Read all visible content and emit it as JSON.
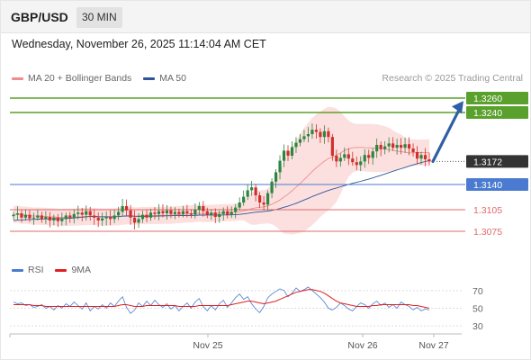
{
  "header": {
    "symbol": "GBP/USD",
    "timeframe": "30 MIN",
    "datetime": "Wednesday, November 26, 2025 11:14:04 AM CET",
    "source": "Research © 2025 Trading Central"
  },
  "legend_main": [
    {
      "label": "MA 20 + Bollinger Bands",
      "color": "#f08c8c"
    },
    {
      "label": "MA 50",
      "color": "#2f5597"
    }
  ],
  "legend_rsi": [
    {
      "label": "RSI",
      "color": "#4a7bd0"
    },
    {
      "label": "9MA",
      "color": "#e02020"
    }
  ],
  "colors": {
    "resistance": "#5aa02c",
    "current": "#333333",
    "pivot": "#4a7bd0",
    "support": "#e06a6a",
    "arrow": "#2f5fa5",
    "candle_up": "#2e8540",
    "candle_down": "#d0302a",
    "band_fill": "#fbd6d6"
  },
  "chart_data": [
    {
      "type": "candlestick",
      "title": "GBP/USD",
      "timeframe": "30 MIN",
      "ylim": [
        1.3055,
        1.327
      ],
      "x_ticks": [
        "Nov 25",
        "Nov 26",
        "Nov 27"
      ],
      "levels": [
        {
          "value": 1.326,
          "label": "1.3260",
          "kind": "resistance"
        },
        {
          "value": 1.324,
          "label": "1.3240",
          "kind": "resistance"
        },
        {
          "value": 1.3172,
          "label": "1.3172",
          "kind": "current"
        },
        {
          "value": 1.314,
          "label": "1.3140",
          "kind": "pivot"
        },
        {
          "value": 1.3105,
          "label": "1.3105",
          "kind": "support"
        },
        {
          "value": 1.3075,
          "label": "1.3075",
          "kind": "support"
        }
      ],
      "closes": [
        1.3098,
        1.31,
        1.3094,
        1.3098,
        1.3093,
        1.3094,
        1.3097,
        1.3092,
        1.3095,
        1.309,
        1.3094,
        1.3089,
        1.3092,
        1.3097,
        1.3094,
        1.3099,
        1.3101,
        1.3098,
        1.3103,
        1.3097,
        1.3094,
        1.309,
        1.3093,
        1.3095,
        1.3092,
        1.3097,
        1.3102,
        1.311,
        1.3104,
        1.3094,
        1.3087,
        1.3092,
        1.3098,
        1.3094,
        1.3101,
        1.3099,
        1.3103,
        1.31,
        1.3104,
        1.3099,
        1.3102,
        1.3099,
        1.3103,
        1.31,
        1.3098,
        1.3105,
        1.311,
        1.3103,
        1.3098,
        1.3101,
        1.3095,
        1.3099,
        1.3103,
        1.3098,
        1.3102,
        1.3108,
        1.3115,
        1.3123,
        1.3132,
        1.3136,
        1.3125,
        1.3115,
        1.3112,
        1.3128,
        1.3144,
        1.3157,
        1.3173,
        1.3187,
        1.318,
        1.3192,
        1.3198,
        1.3203,
        1.3207,
        1.321,
        1.3216,
        1.3213,
        1.3206,
        1.3214,
        1.3206,
        1.318,
        1.3172,
        1.3177,
        1.3182,
        1.3176,
        1.3171,
        1.3167,
        1.3172,
        1.3181,
        1.3177,
        1.3186,
        1.3195,
        1.3189,
        1.3193,
        1.3197,
        1.3191,
        1.3195,
        1.3191,
        1.3196,
        1.319,
        1.3185,
        1.3176,
        1.3181,
        1.3175,
        1.3172
      ]
    },
    {
      "type": "line",
      "title": "RSI",
      "ylim": [
        25,
        80
      ],
      "y_ticks": [
        70,
        50,
        30
      ],
      "series": [
        {
          "name": "RSI",
          "values": [
            57,
            55,
            56,
            53,
            54,
            51,
            52,
            54,
            50,
            52,
            48,
            53,
            50,
            55,
            52,
            57,
            53,
            49,
            56,
            47,
            52,
            49,
            54,
            50,
            56,
            52,
            58,
            63,
            51,
            44,
            48,
            56,
            52,
            58,
            53,
            59,
            54,
            51,
            55,
            49,
            53,
            47,
            52,
            56,
            50,
            57,
            61,
            52,
            47,
            53,
            48,
            55,
            59,
            51,
            56,
            62,
            66,
            60,
            63,
            55,
            49,
            45,
            52,
            62,
            66,
            69,
            72,
            70,
            63,
            67,
            73,
            69,
            71,
            74,
            70,
            66,
            62,
            57,
            50,
            48,
            51,
            56,
            53,
            49,
            47,
            52,
            56,
            54,
            50,
            55,
            58,
            53,
            56,
            51,
            54,
            50,
            57,
            54,
            52,
            48,
            51,
            47,
            49,
            48
          ]
        },
        {
          "name": "9MA",
          "values": [
            54,
            54,
            54,
            54,
            54,
            53,
            53,
            53,
            52,
            52,
            52,
            52,
            52,
            52,
            52,
            52,
            52,
            52,
            52,
            52,
            52,
            52,
            52,
            52,
            52,
            52,
            53,
            54,
            54,
            53,
            52,
            52,
            52,
            53,
            53,
            53,
            53,
            53,
            53,
            53,
            53,
            52,
            52,
            52,
            52,
            52,
            53,
            53,
            53,
            53,
            53,
            53,
            53,
            53,
            54,
            55,
            56,
            57,
            58,
            58,
            57,
            56,
            55,
            56,
            57,
            58,
            60,
            62,
            64,
            66,
            68,
            69,
            70,
            71,
            71,
            70,
            69,
            67,
            64,
            61,
            58,
            56,
            55,
            54,
            53,
            52,
            52,
            52,
            52,
            53,
            53,
            54,
            54,
            54,
            54,
            54,
            54,
            54,
            54,
            53,
            53,
            52,
            51,
            50
          ]
        }
      ]
    }
  ]
}
